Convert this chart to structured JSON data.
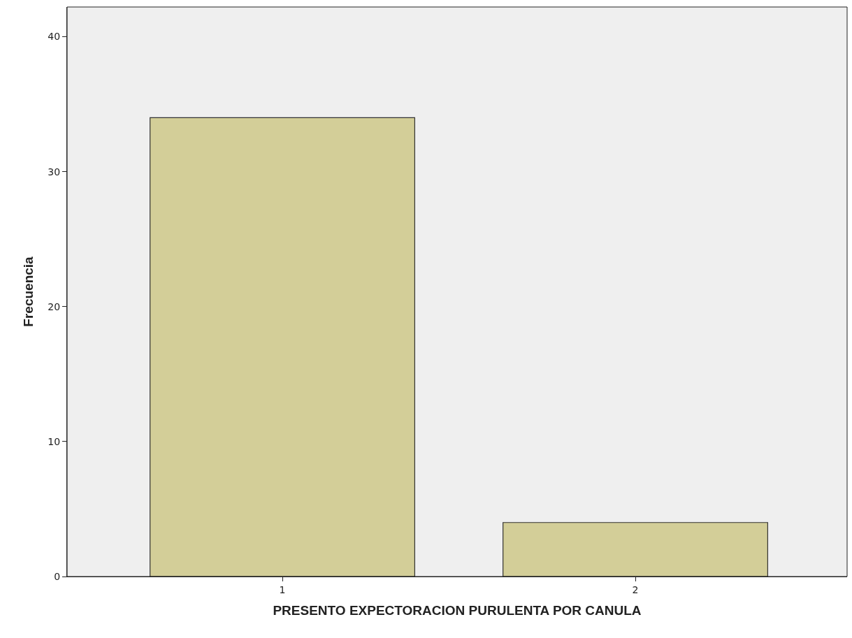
{
  "chart_data": {
    "type": "bar",
    "xlabel": "PRESENTO EXPECTORACION PURULENTA POR CANULA",
    "ylabel": "Frecuencia",
    "categories": [
      "1",
      "2"
    ],
    "values": [
      34,
      4
    ],
    "color": "#d3ce98",
    "ylim": [
      0,
      42.2
    ],
    "yticks": [
      0,
      10,
      20,
      30,
      40
    ],
    "grid": false
  }
}
